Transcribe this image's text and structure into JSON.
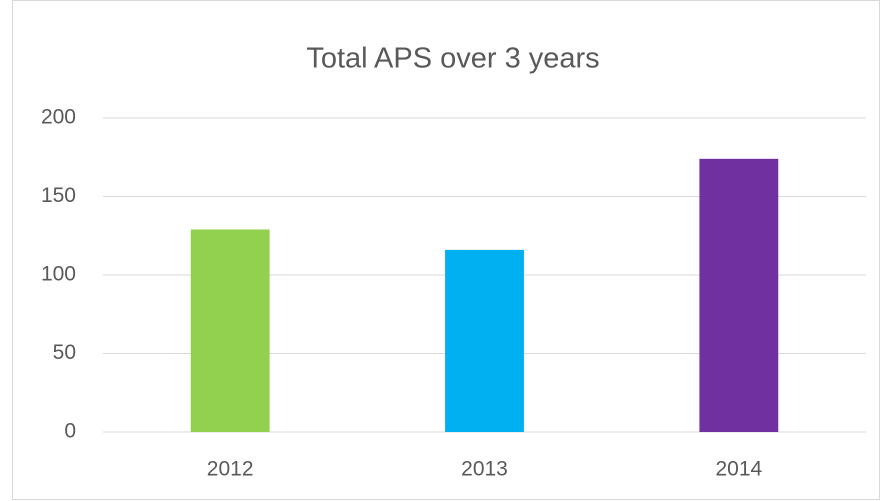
{
  "chart_data": {
    "type": "bar",
    "title": "Total APS over 3 years",
    "categories": [
      "2012",
      "2013",
      "2014"
    ],
    "values": [
      129,
      116,
      174
    ],
    "colors": [
      "#92d050",
      "#00b0f0",
      "#7030a0"
    ],
    "ylim": [
      0,
      200
    ],
    "yticks": [
      0,
      50,
      100,
      150,
      200
    ],
    "grid": true
  }
}
